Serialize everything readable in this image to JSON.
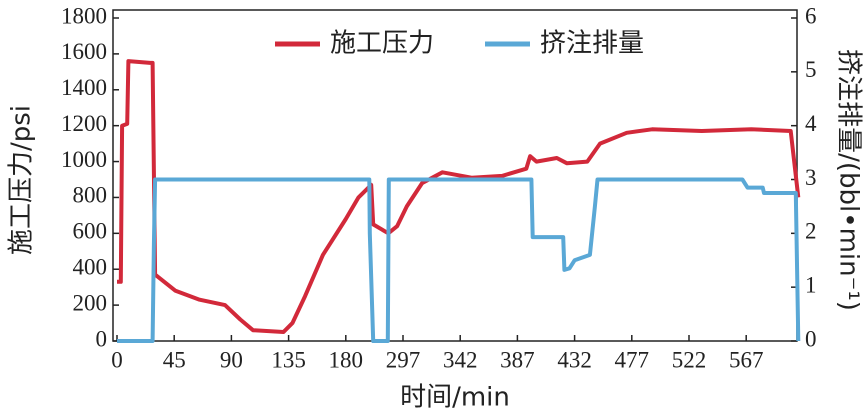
{
  "chart_data": {
    "type": "line",
    "xlabel": "时间/min",
    "ylabel": "施工压力/psi",
    "y2label": "挤注排量/(bbl•min⁻¹)",
    "xlim": [
      0,
      608
    ],
    "xticks": [
      0,
      45,
      90,
      135,
      180,
      297,
      342,
      387,
      432,
      477,
      522,
      567
    ],
    "ylim": [
      0,
      1800
    ],
    "yticks": [
      0,
      200,
      400,
      600,
      800,
      1000,
      1200,
      1400,
      1600,
      1800
    ],
    "y2lim": [
      0,
      6
    ],
    "y2ticks": [
      0,
      1,
      2,
      3,
      4,
      5,
      6
    ],
    "legend": "top",
    "series": [
      {
        "name": "施工压力",
        "color": "#d2293a",
        "x": [
          0,
          3,
          4,
          8,
          9,
          26,
          28,
          30,
          46,
          65,
          85,
          97,
          107,
          131,
          138,
          148,
          162,
          180,
          206,
          232,
          236,
          267,
          285,
          300,
          312,
          328,
          351,
          375,
          394,
          397,
          402,
          418,
          426,
          442,
          452,
          473,
          493,
          532,
          571,
          602,
          608
        ],
        "values": [
          330,
          330,
          1200,
          1210,
          1560,
          1550,
          1550,
          370,
          280,
          230,
          200,
          120,
          60,
          50,
          100,
          250,
          480,
          680,
          800,
          870,
          650,
          600,
          640,
          750,
          880,
          940,
          910,
          920,
          960,
          1030,
          1000,
          1020,
          990,
          1000,
          1100,
          1160,
          1180,
          1170,
          1180,
          1170,
          800
        ]
      },
      {
        "name": "挤注排量",
        "color": "#5aa8d6",
        "axis": "y2",
        "x": [
          0,
          28,
          29,
          30,
          228,
          229,
          236,
          266,
          268,
          398,
          399,
          423,
          424,
          428,
          432,
          444,
          448,
          450,
          564,
          568,
          580,
          581,
          606,
          608
        ],
        "values": [
          0,
          0,
          1.8,
          3,
          3,
          2,
          0,
          0,
          3,
          3,
          1.93,
          1.93,
          1.32,
          1.35,
          1.5,
          1.6,
          2.5,
          3,
          3,
          2.85,
          2.85,
          2.75,
          2.75,
          0
        ]
      }
    ]
  }
}
